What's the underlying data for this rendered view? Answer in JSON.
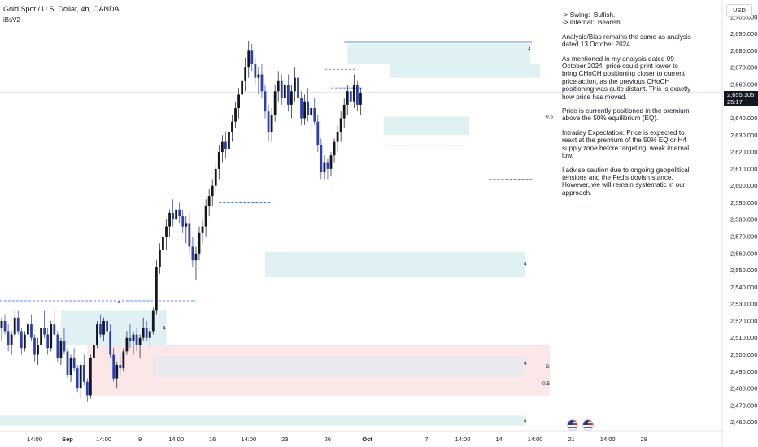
{
  "header": {
    "title": "Gold Spot / U.S. Dollar, 4h, OANDA",
    "indicator": "iBsV2"
  },
  "currency_button": "USD",
  "price_badge": {
    "price": "2,655.105",
    "countdown": "25:17"
  },
  "notes": [
    "-> Swing:  Bullish.\n-> Internal:  Bearish.",
    "Analysis/Bias remains the same as analysis dated 13 October 2024.",
    "As mentioned in my analysis dated 09 October 2024, price could print lower to bring CHoCH positioning closer to current price action, as the previous CHoCH positioning was quite distant. This is exactly how price has moved.",
    "Price is currently positioned in the premium above the 50% equilibrium (EQ).",
    "Intraday Expectation: Price is expected to react at the premium of the 50% EQ or H4 supply zone before targeting  weak internal low.",
    "I advise caution due to ongoing geopolitical tensions and the Fed's dovish stance. However, we will remain systematic in our approach."
  ],
  "colors": {
    "up": "#131722",
    "down": "#2a3fb0",
    "supply_zone": "#dff1f3",
    "demand_zone": "#fbe7e7",
    "eq_band": "#e9e9ee",
    "line_blue": "#2962ff"
  },
  "chart_data": {
    "type": "candlestick",
    "title": "Gold Spot / U.S. Dollar, 4h, OANDA",
    "ylim": [
      2456,
      2710
    ],
    "y_ticks": [
      2460,
      2470,
      2480,
      2490,
      2500,
      2510,
      2520,
      2530,
      2540,
      2550,
      2560,
      2570,
      2580,
      2590,
      2600,
      2610,
      2620,
      2630,
      2640,
      2650,
      2660,
      2670,
      2680,
      2690,
      2700
    ],
    "y_tick_labels": [
      "2,460.000",
      "2,470.000",
      "2,480.000",
      "2,490.000",
      "2,500.000",
      "2,510.000",
      "2,520.000",
      "2,530.000",
      "2,540.000",
      "2,550.000",
      "2,560.000",
      "2,570.000",
      "2,580.000",
      "2,590.000",
      "2,600.000",
      "2,610.000",
      "2,620.000",
      "2,630.000",
      "2,640.000",
      "2,650.000",
      "2,660.000",
      "2,670.000",
      "2,680.000",
      "2,690.000",
      "2,700.000"
    ],
    "x_ticks": [
      {
        "label": "14:00",
        "bar": 10
      },
      {
        "label": "Sep",
        "bar": 20,
        "bold": true
      },
      {
        "label": "14:00",
        "bar": 31
      },
      {
        "label": "9",
        "bar": 42
      },
      {
        "label": "14:00",
        "bar": 53
      },
      {
        "label": "16",
        "bar": 64
      },
      {
        "label": "14:00",
        "bar": 75
      },
      {
        "label": "23",
        "bar": 86
      },
      {
        "label": "26",
        "bar": 99
      },
      {
        "label": "Oct",
        "bar": 111,
        "bold": true
      },
      {
        "label": "7",
        "bar": 129
      },
      {
        "label": "14:00",
        "bar": 140
      },
      {
        "label": "14",
        "bar": 151
      },
      {
        "label": "14:00",
        "bar": 162
      },
      {
        "label": "21",
        "bar": 173
      },
      {
        "label": "14:00",
        "bar": 184
      },
      {
        "label": "28",
        "bar": 195
      }
    ],
    "current_price": 2655.105,
    "ohlc": [
      [
        2516,
        2522,
        2508,
        2520
      ],
      [
        2520,
        2524,
        2512,
        2514
      ],
      [
        2514,
        2518,
        2502,
        2506
      ],
      [
        2506,
        2514,
        2500,
        2512
      ],
      [
        2512,
        2526,
        2510,
        2522
      ],
      [
        2522,
        2526,
        2512,
        2514
      ],
      [
        2514,
        2516,
        2500,
        2504
      ],
      [
        2504,
        2514,
        2502,
        2512
      ],
      [
        2512,
        2522,
        2508,
        2518
      ],
      [
        2518,
        2524,
        2508,
        2510
      ],
      [
        2510,
        2512,
        2496,
        2500
      ],
      [
        2500,
        2510,
        2494,
        2506
      ],
      [
        2506,
        2520,
        2504,
        2516
      ],
      [
        2516,
        2526,
        2510,
        2512
      ],
      [
        2512,
        2516,
        2500,
        2504
      ],
      [
        2504,
        2520,
        2502,
        2518
      ],
      [
        2518,
        2526,
        2510,
        2512
      ],
      [
        2512,
        2514,
        2496,
        2498
      ],
      [
        2498,
        2510,
        2494,
        2508
      ],
      [
        2508,
        2516,
        2500,
        2502
      ],
      [
        2502,
        2504,
        2486,
        2488
      ],
      [
        2488,
        2500,
        2484,
        2498
      ],
      [
        2498,
        2504,
        2490,
        2492
      ],
      [
        2492,
        2494,
        2478,
        2480
      ],
      [
        2480,
        2496,
        2474,
        2494
      ],
      [
        2494,
        2500,
        2482,
        2484
      ],
      [
        2484,
        2486,
        2472,
        2476
      ],
      [
        2476,
        2500,
        2474,
        2498
      ],
      [
        2498,
        2508,
        2494,
        2506
      ],
      [
        2506,
        2520,
        2504,
        2518
      ],
      [
        2518,
        2524,
        2510,
        2512
      ],
      [
        2512,
        2522,
        2508,
        2520
      ],
      [
        2520,
        2526,
        2510,
        2514
      ],
      [
        2514,
        2518,
        2498,
        2500
      ],
      [
        2500,
        2504,
        2484,
        2486
      ],
      [
        2486,
        2496,
        2480,
        2494
      ],
      [
        2494,
        2500,
        2488,
        2492
      ],
      [
        2492,
        2504,
        2490,
        2502
      ],
      [
        2502,
        2514,
        2500,
        2510
      ],
      [
        2510,
        2518,
        2504,
        2508
      ],
      [
        2508,
        2514,
        2500,
        2512
      ],
      [
        2512,
        2516,
        2502,
        2506
      ],
      [
        2506,
        2512,
        2498,
        2510
      ],
      [
        2510,
        2522,
        2508,
        2516
      ],
      [
        2516,
        2520,
        2508,
        2510
      ],
      [
        2510,
        2516,
        2504,
        2514
      ],
      [
        2514,
        2528,
        2512,
        2526
      ],
      [
        2526,
        2556,
        2524,
        2552
      ],
      [
        2552,
        2566,
        2548,
        2562
      ],
      [
        2562,
        2574,
        2556,
        2570
      ],
      [
        2570,
        2580,
        2562,
        2576
      ],
      [
        2576,
        2586,
        2570,
        2584
      ],
      [
        2584,
        2592,
        2576,
        2580
      ],
      [
        2580,
        2588,
        2572,
        2586
      ],
      [
        2586,
        2590,
        2578,
        2582
      ],
      [
        2582,
        2586,
        2572,
        2576
      ],
      [
        2576,
        2582,
        2566,
        2578
      ],
      [
        2578,
        2584,
        2560,
        2564
      ],
      [
        2564,
        2570,
        2552,
        2556
      ],
      [
        2556,
        2564,
        2544,
        2560
      ],
      [
        2560,
        2576,
        2556,
        2572
      ],
      [
        2572,
        2580,
        2566,
        2576
      ],
      [
        2576,
        2592,
        2570,
        2588
      ],
      [
        2588,
        2598,
        2582,
        2594
      ],
      [
        2594,
        2604,
        2588,
        2600
      ],
      [
        2600,
        2614,
        2596,
        2610
      ],
      [
        2610,
        2624,
        2604,
        2620
      ],
      [
        2620,
        2630,
        2614,
        2626
      ],
      [
        2626,
        2632,
        2616,
        2622
      ],
      [
        2622,
        2636,
        2618,
        2632
      ],
      [
        2632,
        2642,
        2626,
        2638
      ],
      [
        2638,
        2650,
        2634,
        2646
      ],
      [
        2646,
        2658,
        2640,
        2654
      ],
      [
        2654,
        2668,
        2650,
        2662
      ],
      [
        2662,
        2676,
        2656,
        2670
      ],
      [
        2670,
        2686,
        2664,
        2680
      ],
      [
        2680,
        2684,
        2668,
        2672
      ],
      [
        2672,
        2676,
        2660,
        2664
      ],
      [
        2664,
        2670,
        2654,
        2666
      ],
      [
        2666,
        2672,
        2652,
        2656
      ],
      [
        2656,
        2660,
        2640,
        2644
      ],
      [
        2644,
        2648,
        2626,
        2632
      ],
      [
        2632,
        2646,
        2626,
        2642
      ],
      [
        2642,
        2660,
        2638,
        2656
      ],
      [
        2656,
        2668,
        2650,
        2662
      ],
      [
        2662,
        2666,
        2648,
        2652
      ],
      [
        2652,
        2664,
        2646,
        2660
      ],
      [
        2660,
        2666,
        2644,
        2648
      ],
      [
        2648,
        2660,
        2640,
        2656
      ],
      [
        2656,
        2670,
        2650,
        2664
      ],
      [
        2664,
        2668,
        2648,
        2652
      ],
      [
        2652,
        2656,
        2636,
        2640
      ],
      [
        2640,
        2654,
        2636,
        2650
      ],
      [
        2650,
        2658,
        2638,
        2642
      ],
      [
        2642,
        2650,
        2632,
        2646
      ],
      [
        2646,
        2652,
        2636,
        2638
      ],
      [
        2638,
        2642,
        2620,
        2624
      ],
      [
        2624,
        2628,
        2604,
        2608
      ],
      [
        2608,
        2618,
        2604,
        2614
      ],
      [
        2614,
        2616,
        2604,
        2610
      ],
      [
        2610,
        2620,
        2606,
        2618
      ],
      [
        2618,
        2628,
        2614,
        2626
      ],
      [
        2626,
        2636,
        2620,
        2632
      ],
      [
        2632,
        2644,
        2626,
        2640
      ],
      [
        2640,
        2652,
        2634,
        2648
      ],
      [
        2648,
        2660,
        2642,
        2656
      ],
      [
        2656,
        2664,
        2646,
        2650
      ],
      [
        2650,
        2666,
        2646,
        2660
      ],
      [
        2660,
        2662,
        2644,
        2648
      ],
      [
        2648,
        2658,
        2642,
        2655
      ]
    ],
    "annotations": {
      "labels": [
        "4",
        "4",
        "4",
        "4",
        "4",
        "4",
        "D",
        "0.5",
        "0.5"
      ]
    }
  }
}
